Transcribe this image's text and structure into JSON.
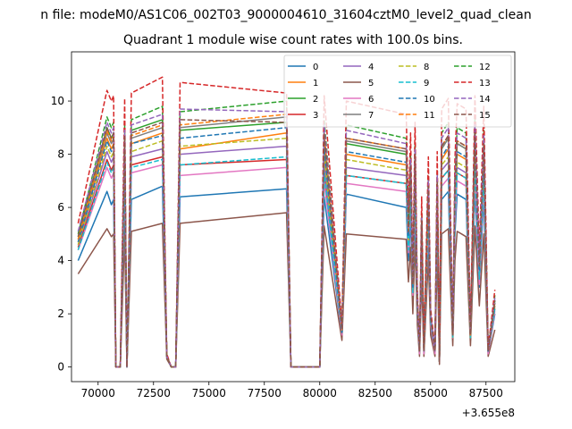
{
  "figure": {
    "suptitle": "n file: modeM0/AS1C06_002T03_9000004610_31604cztM0_level2_quad_clean"
  },
  "chart_data": {
    "type": "line",
    "title": "Quadrant 1 module wise count rates with 100.0s bins.",
    "xlabel": "",
    "ylabel": "",
    "x_offset_label": "+3.655e8",
    "xlim": [
      68800,
      88800
    ],
    "ylim": [
      -0.55,
      11.85
    ],
    "x_ticks": [
      70000,
      72500,
      75000,
      77500,
      80000,
      82500,
      85000,
      87500
    ],
    "x_tick_labels": [
      "70000",
      "72500",
      "75000",
      "77500",
      "80000",
      "82500",
      "85000",
      "87500"
    ],
    "y_ticks": [
      0,
      2,
      4,
      6,
      8,
      10
    ],
    "y_tick_labels": [
      "0",
      "2",
      "4",
      "6",
      "8",
      "10"
    ],
    "grid": false,
    "legend_position": "top-right",
    "legend_columns": 4,
    "x": [
      69100,
      70400,
      70600,
      70700,
      70800,
      71000,
      71200,
      71300,
      71500,
      72900,
      73100,
      73300,
      73500,
      73700,
      78500,
      78700,
      80000,
      80200,
      81000,
      81200,
      83900,
      84000,
      84100,
      84200,
      84300,
      84400,
      84500,
      84600,
      84700,
      84900,
      85000,
      85200,
      85300,
      85400,
      85500,
      85800,
      86000,
      86100,
      86200,
      86400,
      86600,
      86800,
      87000,
      87200,
      87400,
      87600,
      87900
    ],
    "series": [
      {
        "name": "0",
        "color": "#1f77b4",
        "dash": "solid",
        "values": [
          4.0,
          6.6,
          6.1,
          6.3,
          0.0,
          0.0,
          6.1,
          0.0,
          6.3,
          6.8,
          0.4,
          0.0,
          0.0,
          6.4,
          6.7,
          0.0,
          0.0,
          6.4,
          1.2,
          6.5,
          6.0,
          4.0,
          5.5,
          2.5,
          5.8,
          2.0,
          0.5,
          4.0,
          0.5,
          5.0,
          1.5,
          0.5,
          5.2,
          0.2,
          6.3,
          6.6,
          1.0,
          5.0,
          6.5,
          6.4,
          6.3,
          1.0,
          6.7,
          3.0,
          6.4,
          0.5,
          2.0
        ]
      },
      {
        "name": "1",
        "color": "#ff7f0e",
        "dash": "solid",
        "values": [
          4.7,
          8.6,
          8.2,
          8.4,
          0.0,
          0.0,
          8.3,
          0.0,
          8.4,
          8.8,
          0.4,
          0.0,
          0.0,
          8.2,
          8.8,
          0.0,
          0.0,
          8.1,
          1.3,
          8.0,
          7.6,
          4.8,
          7.1,
          3.0,
          7.4,
          2.4,
          0.6,
          5.2,
          0.6,
          6.4,
          1.8,
          0.6,
          6.6,
          0.2,
          7.8,
          8.2,
          1.2,
          6.3,
          8.0,
          7.9,
          7.8,
          1.2,
          8.3,
          3.6,
          7.9,
          0.6,
          2.4
        ]
      },
      {
        "name": "2",
        "color": "#2ca02c",
        "dash": "solid",
        "values": [
          4.9,
          9.0,
          8.6,
          8.8,
          0.0,
          0.0,
          8.7,
          0.0,
          8.9,
          9.3,
          0.4,
          0.0,
          0.0,
          8.9,
          9.2,
          0.0,
          0.0,
          8.6,
          1.4,
          8.4,
          8.0,
          5.0,
          7.4,
          3.1,
          7.8,
          2.5,
          0.6,
          5.4,
          0.6,
          6.7,
          1.9,
          0.6,
          6.9,
          0.2,
          8.2,
          8.6,
          1.2,
          6.6,
          8.4,
          8.3,
          8.2,
          1.2,
          8.7,
          3.8,
          8.3,
          0.6,
          2.5
        ]
      },
      {
        "name": "3",
        "color": "#d62728",
        "dash": "solid",
        "values": [
          4.5,
          7.8,
          7.4,
          7.6,
          0.0,
          0.0,
          7.4,
          0.0,
          7.6,
          7.9,
          0.4,
          0.0,
          0.0,
          7.6,
          7.8,
          0.0,
          0.0,
          7.3,
          1.3,
          7.2,
          6.9,
          4.5,
          6.4,
          2.8,
          6.7,
          2.2,
          0.6,
          4.7,
          0.6,
          5.8,
          1.7,
          0.6,
          6.0,
          0.2,
          7.1,
          7.4,
          1.1,
          5.7,
          7.3,
          7.2,
          7.1,
          1.1,
          7.5,
          3.3,
          7.2,
          0.6,
          2.2
        ]
      },
      {
        "name": "4",
        "color": "#9467bd",
        "dash": "solid",
        "values": [
          4.6,
          8.1,
          7.7,
          7.9,
          0.0,
          0.0,
          7.8,
          0.0,
          7.9,
          8.2,
          0.4,
          0.0,
          0.0,
          8.0,
          8.3,
          0.0,
          0.0,
          7.7,
          1.3,
          7.5,
          7.2,
          4.6,
          6.7,
          2.9,
          7.0,
          2.3,
          0.6,
          4.9,
          0.6,
          6.0,
          1.7,
          0.6,
          6.2,
          0.2,
          7.4,
          7.7,
          1.1,
          5.9,
          7.5,
          7.4,
          7.3,
          1.1,
          7.8,
          3.4,
          7.4,
          0.6,
          2.3
        ]
      },
      {
        "name": "5",
        "color": "#8c564b",
        "dash": "solid",
        "values": [
          3.5,
          5.2,
          4.9,
          5.0,
          0.0,
          0.0,
          5.0,
          0.0,
          5.1,
          5.4,
          0.3,
          0.0,
          0.0,
          5.4,
          5.8,
          0.0,
          0.0,
          5.3,
          1.0,
          5.0,
          4.8,
          3.2,
          4.5,
          2.0,
          4.7,
          1.6,
          0.4,
          3.3,
          0.4,
          4.1,
          1.2,
          0.4,
          4.2,
          0.1,
          5.0,
          5.2,
          0.8,
          4.0,
          5.1,
          5.0,
          4.9,
          0.8,
          5.3,
          2.3,
          5.0,
          0.4,
          1.4
        ]
      },
      {
        "name": "6",
        "color": "#e377c2",
        "dash": "solid",
        "values": [
          4.4,
          7.5,
          7.1,
          7.3,
          0.0,
          0.0,
          7.1,
          0.0,
          7.3,
          7.6,
          0.4,
          0.0,
          0.0,
          7.2,
          7.5,
          0.0,
          0.0,
          7.0,
          1.2,
          6.9,
          6.6,
          4.3,
          6.1,
          2.7,
          6.4,
          2.1,
          0.5,
          4.5,
          0.5,
          5.5,
          1.6,
          0.5,
          5.7,
          0.2,
          6.8,
          7.1,
          1.1,
          5.4,
          7.0,
          6.9,
          6.8,
          1.1,
          7.2,
          3.1,
          6.9,
          0.5,
          2.1
        ]
      },
      {
        "name": "7",
        "color": "#7f7f7f",
        "dash": "solid",
        "values": [
          4.8,
          8.8,
          8.4,
          8.6,
          0.0,
          0.0,
          8.5,
          0.0,
          8.6,
          9.0,
          0.4,
          0.0,
          0.0,
          9.0,
          9.4,
          0.0,
          0.0,
          8.7,
          1.4,
          8.5,
          8.1,
          5.0,
          7.5,
          3.1,
          7.9,
          2.5,
          0.6,
          5.4,
          0.6,
          6.7,
          1.9,
          0.6,
          6.9,
          0.2,
          8.2,
          8.6,
          1.2,
          6.6,
          8.4,
          8.3,
          8.2,
          1.2,
          8.7,
          3.8,
          8.3,
          0.6,
          2.5
        ]
      },
      {
        "name": "8",
        "color": "#bcbd22",
        "dash": "dashed",
        "values": [
          4.6,
          8.3,
          7.9,
          8.1,
          0.0,
          0.0,
          8.0,
          0.0,
          8.1,
          8.5,
          0.4,
          0.0,
          0.0,
          8.3,
          8.6,
          0.0,
          0.0,
          8.0,
          1.3,
          7.8,
          7.4,
          4.7,
          6.9,
          2.9,
          7.2,
          2.3,
          0.6,
          5.0,
          0.6,
          6.2,
          1.8,
          0.6,
          6.4,
          0.2,
          7.6,
          7.9,
          1.1,
          6.1,
          7.7,
          7.6,
          7.5,
          1.1,
          8.0,
          3.5,
          7.6,
          0.6,
          2.3
        ]
      },
      {
        "name": "9",
        "color": "#17becf",
        "dash": "dashed",
        "values": [
          4.4,
          7.7,
          7.3,
          7.5,
          0.0,
          0.0,
          7.3,
          0.0,
          7.5,
          7.8,
          0.4,
          0.0,
          0.0,
          7.6,
          7.9,
          0.0,
          0.0,
          7.3,
          1.3,
          7.2,
          6.9,
          4.4,
          6.4,
          2.8,
          6.7,
          2.2,
          0.6,
          4.7,
          0.6,
          5.8,
          1.7,
          0.6,
          6.0,
          0.2,
          7.1,
          7.4,
          1.1,
          5.7,
          7.3,
          7.2,
          7.1,
          1.1,
          7.5,
          3.3,
          7.2,
          0.6,
          2.2
        ]
      },
      {
        "name": "10",
        "color": "#1f77b4",
        "dash": "dashed",
        "values": [
          4.7,
          8.5,
          8.1,
          8.3,
          0.0,
          0.0,
          8.2,
          0.0,
          8.4,
          8.7,
          0.4,
          0.0,
          0.0,
          8.6,
          9.0,
          0.0,
          0.0,
          8.3,
          1.3,
          8.1,
          7.7,
          4.9,
          7.2,
          3.0,
          7.5,
          2.4,
          0.6,
          5.2,
          0.6,
          6.4,
          1.8,
          0.6,
          6.6,
          0.2,
          7.9,
          8.3,
          1.2,
          6.4,
          8.1,
          8.0,
          7.9,
          1.2,
          8.4,
          3.6,
          8.0,
          0.6,
          2.4
        ]
      },
      {
        "name": "11",
        "color": "#ff7f0e",
        "dash": "dashed",
        "values": [
          4.8,
          8.9,
          8.5,
          8.7,
          0.0,
          0.0,
          8.6,
          0.0,
          8.7,
          9.1,
          0.4,
          0.0,
          0.0,
          9.1,
          9.5,
          0.0,
          0.0,
          8.8,
          1.4,
          8.6,
          8.2,
          5.1,
          7.6,
          3.2,
          8.0,
          2.6,
          0.6,
          5.5,
          0.6,
          6.8,
          1.9,
          0.6,
          7.0,
          0.2,
          8.3,
          8.7,
          1.2,
          6.7,
          8.5,
          8.4,
          8.3,
          1.2,
          8.8,
          3.8,
          8.4,
          0.6,
          2.5
        ]
      },
      {
        "name": "12",
        "color": "#2ca02c",
        "dash": "dashed",
        "values": [
          5.0,
          9.4,
          9.0,
          9.2,
          0.0,
          0.0,
          9.1,
          0.0,
          9.3,
          9.8,
          0.4,
          0.0,
          0.0,
          9.6,
          10.0,
          0.0,
          0.0,
          9.3,
          1.4,
          9.1,
          8.6,
          5.3,
          8.0,
          3.3,
          8.4,
          2.7,
          0.7,
          5.8,
          0.7,
          7.2,
          2.0,
          0.7,
          7.4,
          0.2,
          8.8,
          9.2,
          1.3,
          7.1,
          9.0,
          8.9,
          8.8,
          1.3,
          9.3,
          4.0,
          8.9,
          0.7,
          2.7
        ]
      },
      {
        "name": "13",
        "color": "#d62728",
        "dash": "dashed",
        "values": [
          5.4,
          10.4,
          10.0,
          10.2,
          0.0,
          0.0,
          10.1,
          0.0,
          10.3,
          10.9,
          0.5,
          0.0,
          0.0,
          10.7,
          10.3,
          0.0,
          0.0,
          10.2,
          1.6,
          10.0,
          9.5,
          5.9,
          8.8,
          3.6,
          9.2,
          3.0,
          0.7,
          6.4,
          0.7,
          7.9,
          2.2,
          0.7,
          8.1,
          0.2,
          9.7,
          10.1,
          1.4,
          7.8,
          9.9,
          9.8,
          9.7,
          1.4,
          10.2,
          4.4,
          9.8,
          0.7,
          2.9
        ]
      },
      {
        "name": "14",
        "color": "#9467bd",
        "dash": "dashed",
        "values": [
          5.1,
          9.2,
          8.8,
          9.0,
          0.0,
          0.0,
          8.9,
          0.0,
          9.1,
          9.5,
          0.4,
          0.0,
          0.0,
          9.7,
          9.6,
          0.0,
          0.0,
          9.1,
          1.4,
          8.9,
          8.4,
          5.2,
          7.8,
          3.2,
          8.2,
          2.6,
          0.6,
          5.6,
          0.6,
          7.0,
          2.0,
          0.6,
          7.2,
          0.2,
          8.6,
          9.0,
          1.3,
          6.9,
          8.8,
          8.7,
          8.6,
          1.3,
          9.1,
          3.9,
          8.7,
          0.6,
          2.6
        ]
      },
      {
        "name": "15",
        "color": "#8c564b",
        "dash": "dashed",
        "values": [
          4.9,
          9.0,
          8.6,
          8.8,
          0.0,
          0.0,
          8.7,
          0.0,
          8.8,
          9.2,
          0.4,
          0.0,
          0.0,
          9.3,
          9.2,
          0.0,
          0.0,
          8.8,
          1.4,
          8.6,
          8.2,
          5.1,
          7.6,
          3.1,
          8.0,
          2.5,
          0.6,
          5.5,
          0.6,
          6.8,
          1.9,
          0.6,
          7.0,
          0.2,
          8.3,
          8.7,
          1.2,
          6.7,
          8.5,
          8.4,
          8.3,
          1.2,
          8.8,
          3.8,
          8.4,
          0.6,
          2.5
        ]
      }
    ]
  }
}
